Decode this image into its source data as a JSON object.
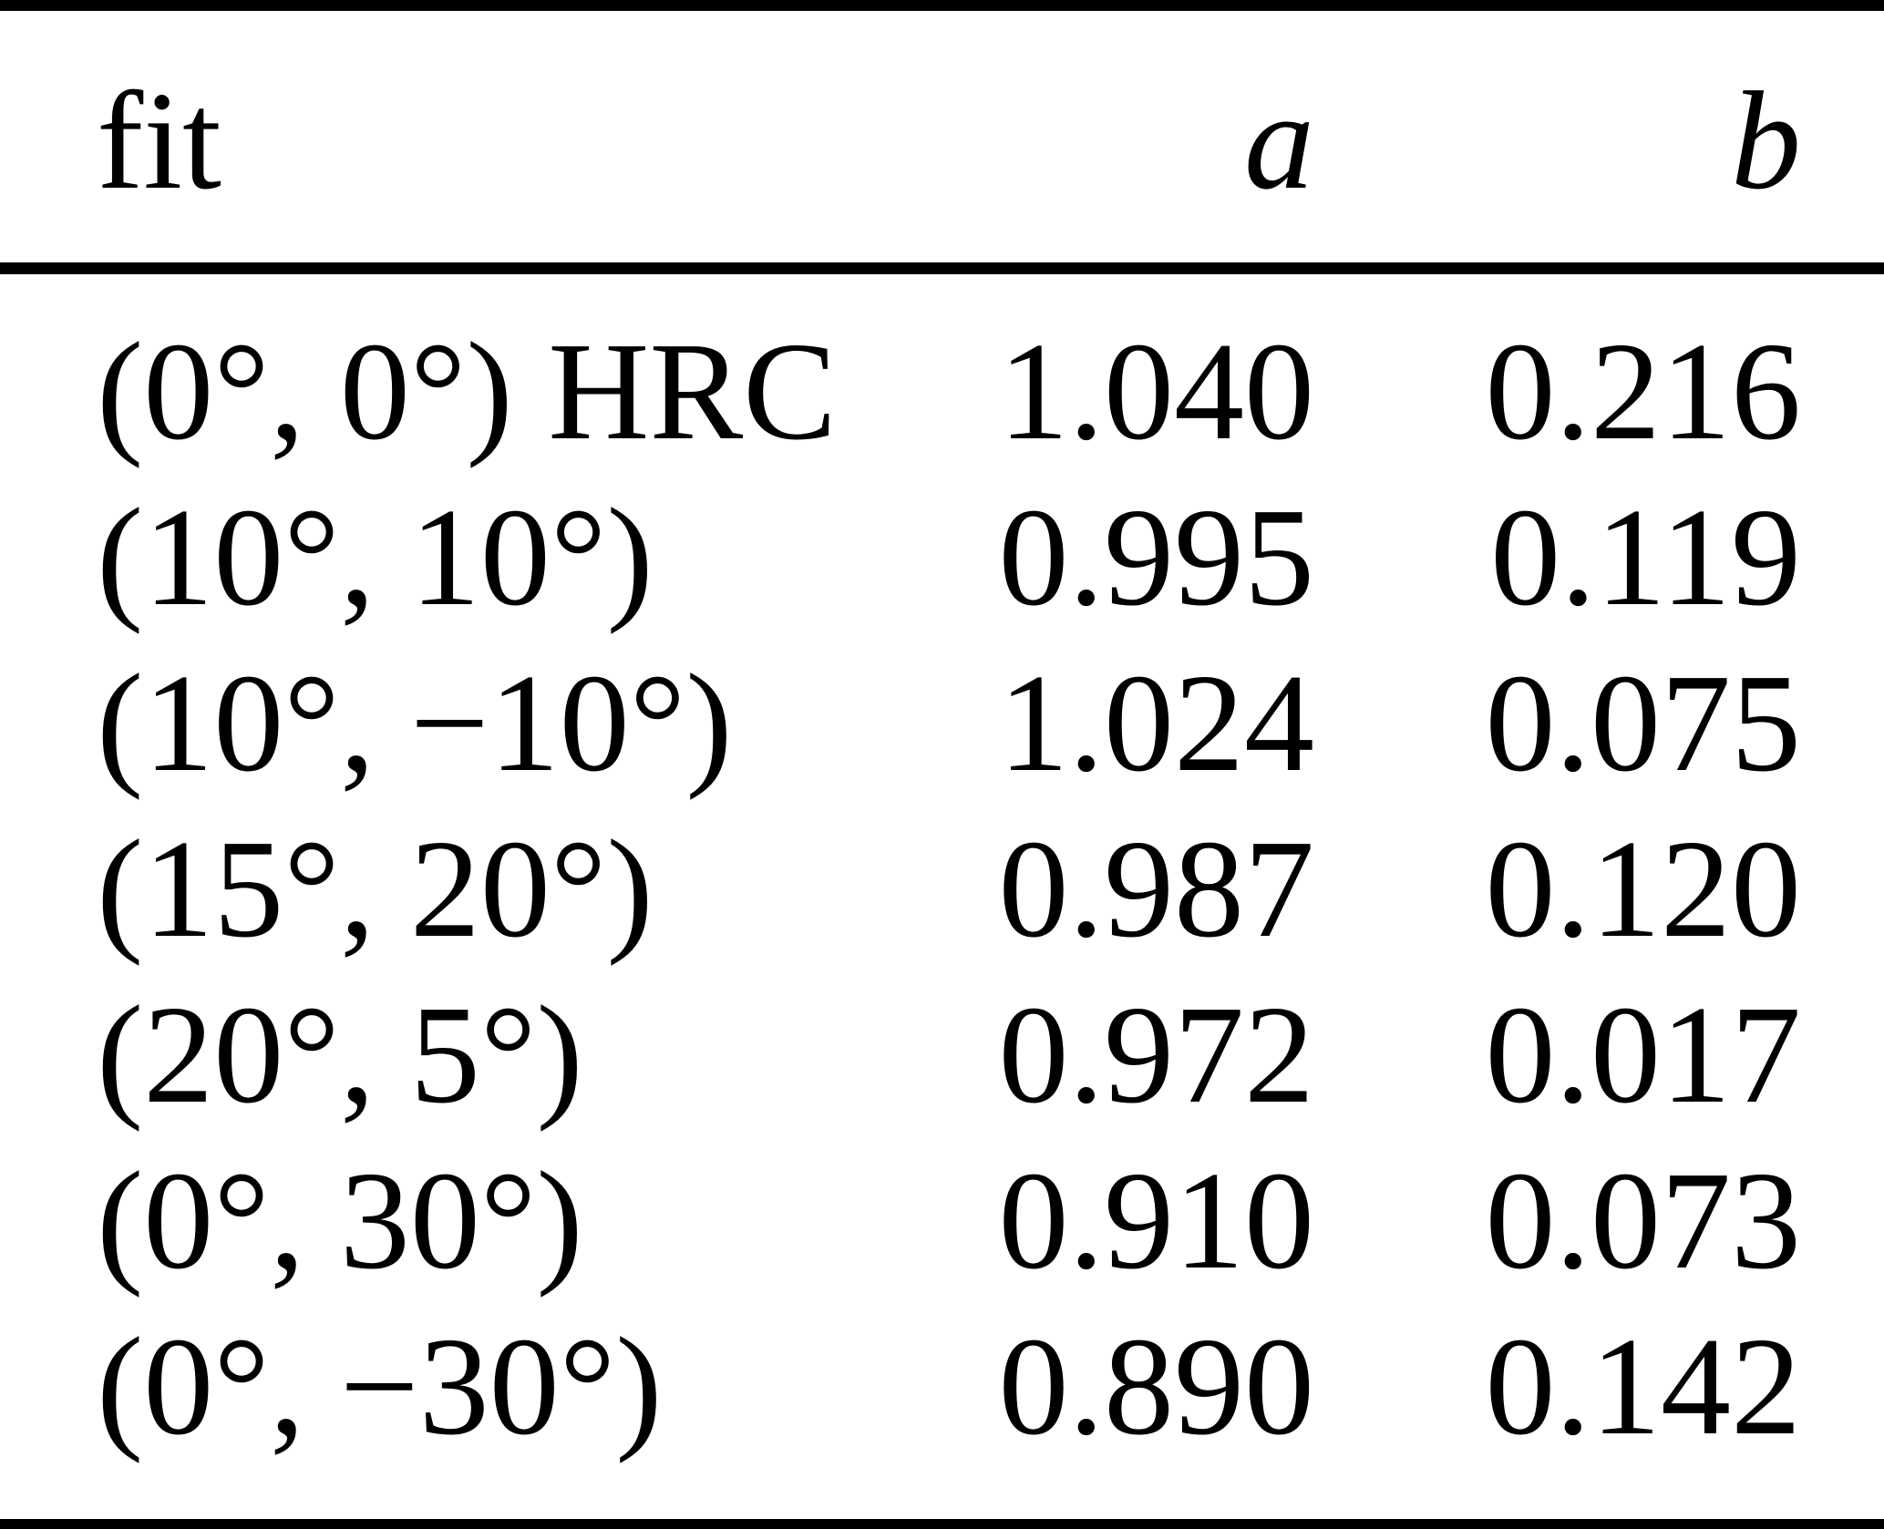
{
  "table": {
    "header": {
      "fit": "fit",
      "a": "a",
      "b": "b"
    },
    "rows": [
      {
        "fit": "(0°, 0°) HRC",
        "a": "1.040",
        "b": "0.216"
      },
      {
        "fit": "(10°, 10°)",
        "a": "0.995",
        "b": "0.119"
      },
      {
        "fit": "(10°, −10°)",
        "a": "1.024",
        "b": "0.075"
      },
      {
        "fit": "(15°, 20°)",
        "a": "0.987",
        "b": "0.120"
      },
      {
        "fit": "(20°, 5°)",
        "a": "0.972",
        "b": "0.017"
      },
      {
        "fit": "(0°, 30°)",
        "a": "0.910",
        "b": "0.073"
      },
      {
        "fit": "(0°, −30°)",
        "a": "0.890",
        "b": "0.142"
      }
    ],
    "text_color": "#000000",
    "rule_color": "#000000",
    "background_color": "#ffffff"
  }
}
